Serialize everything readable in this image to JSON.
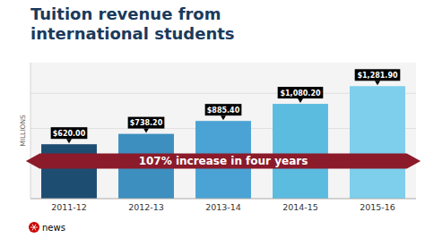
{
  "chart_data": {
    "type": "bar",
    "title": "Tuition revenue from\ninternational students",
    "categories": [
      "2011-12",
      "2012-13",
      "2013-14",
      "2014-15",
      "2015-16"
    ],
    "values": [
      620.0,
      738.2,
      885.4,
      1080.2,
      1281.9
    ],
    "value_labels": [
      "$620.00",
      "$738.20",
      "$885.40",
      "$1,080.20",
      "$1,281.90"
    ],
    "data_labels": true,
    "colors": [
      "#1e4d72",
      "#3d8fbf",
      "#4aa3d4",
      "#5bbce0",
      "#7dcfec"
    ],
    "ylabel": "MILLIONS",
    "ylim": [
      0,
      1550
    ],
    "yticks": [
      400,
      800,
      1200
    ],
    "grid": true,
    "tick_labels": "x",
    "annotations": [
      "107% increase in four years",
      "news"
    ]
  }
}
